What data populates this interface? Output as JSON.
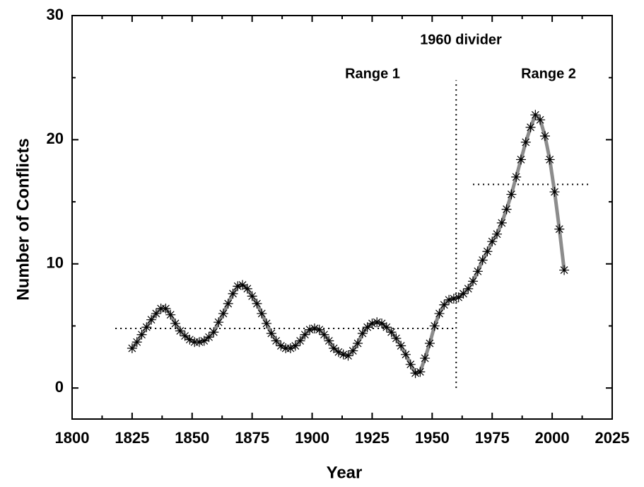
{
  "chart_data": {
    "type": "line",
    "x_label": "Year",
    "y_label": "Number of Conflicts",
    "annotations": [
      "1960 divider",
      "Range 1",
      "Range 2"
    ],
    "x": [
      1825,
      1827,
      1829,
      1831,
      1833,
      1835,
      1837,
      1839,
      1841,
      1843,
      1845,
      1847,
      1849,
      1851,
      1853,
      1855,
      1857,
      1859,
      1861,
      1863,
      1865,
      1867,
      1869,
      1871,
      1873,
      1875,
      1877,
      1879,
      1881,
      1883,
      1885,
      1887,
      1889,
      1891,
      1893,
      1895,
      1897,
      1899,
      1901,
      1903,
      1905,
      1907,
      1909,
      1911,
      1913,
      1915,
      1917,
      1919,
      1921,
      1923,
      1925,
      1927,
      1929,
      1931,
      1933,
      1935,
      1937,
      1939,
      1941,
      1943,
      1945,
      1947,
      1949,
      1951,
      1953,
      1955,
      1957,
      1959,
      1961,
      1963,
      1965,
      1967,
      1969,
      1971,
      1973,
      1975,
      1977,
      1979,
      1981,
      1983,
      1985,
      1987,
      1989,
      1991,
      1993,
      1995,
      1997,
      1999,
      2001,
      2003,
      2005
    ],
    "series": [
      {
        "line_color": "#8c8c8c",
        "marker_color": "#000000",
        "values": [
          3.2,
          3.7,
          4.3,
          4.9,
          5.5,
          6.0,
          6.4,
          6.4,
          5.9,
          5.2,
          4.6,
          4.2,
          3.9,
          3.7,
          3.7,
          3.8,
          4.1,
          4.5,
          5.3,
          6.0,
          6.8,
          7.6,
          8.2,
          8.3,
          8.0,
          7.4,
          6.8,
          6.0,
          5.2,
          4.4,
          3.8,
          3.4,
          3.2,
          3.2,
          3.4,
          3.8,
          4.3,
          4.7,
          4.8,
          4.7,
          4.3,
          3.8,
          3.2,
          2.9,
          2.7,
          2.6,
          3.0,
          3.6,
          4.4,
          4.9,
          5.2,
          5.3,
          5.2,
          4.9,
          4.5,
          4.0,
          3.4,
          2.7,
          1.9,
          1.2,
          1.3,
          2.4,
          3.6,
          5.0,
          6.0,
          6.7,
          7.1,
          7.2,
          7.3,
          7.6,
          8.0,
          8.6,
          9.4,
          10.3,
          11.0,
          11.8,
          12.4,
          13.3,
          14.4,
          15.6,
          17.0,
          18.4,
          19.8,
          21.0,
          22.0,
          21.6,
          20.3,
          18.4,
          15.8,
          12.8,
          9.5
        ]
      }
    ],
    "reference_lines": [
      {
        "x": [
          1818,
          1960
        ],
        "y": [
          4.8,
          4.8
        ]
      },
      {
        "x": [
          1967,
          2015
        ],
        "y": [
          16.4,
          16.4
        ]
      },
      {
        "x": [
          1960,
          1960
        ],
        "y": [
          0,
          24.8
        ]
      }
    ],
    "xlim": [
      1800,
      2025
    ],
    "xticks": [
      1800,
      1825,
      1850,
      1875,
      1900,
      1925,
      1950,
      1975,
      2000,
      2025
    ],
    "ylim": [
      -2.5,
      30
    ],
    "yticks": [
      0,
      10,
      20,
      30
    ]
  }
}
